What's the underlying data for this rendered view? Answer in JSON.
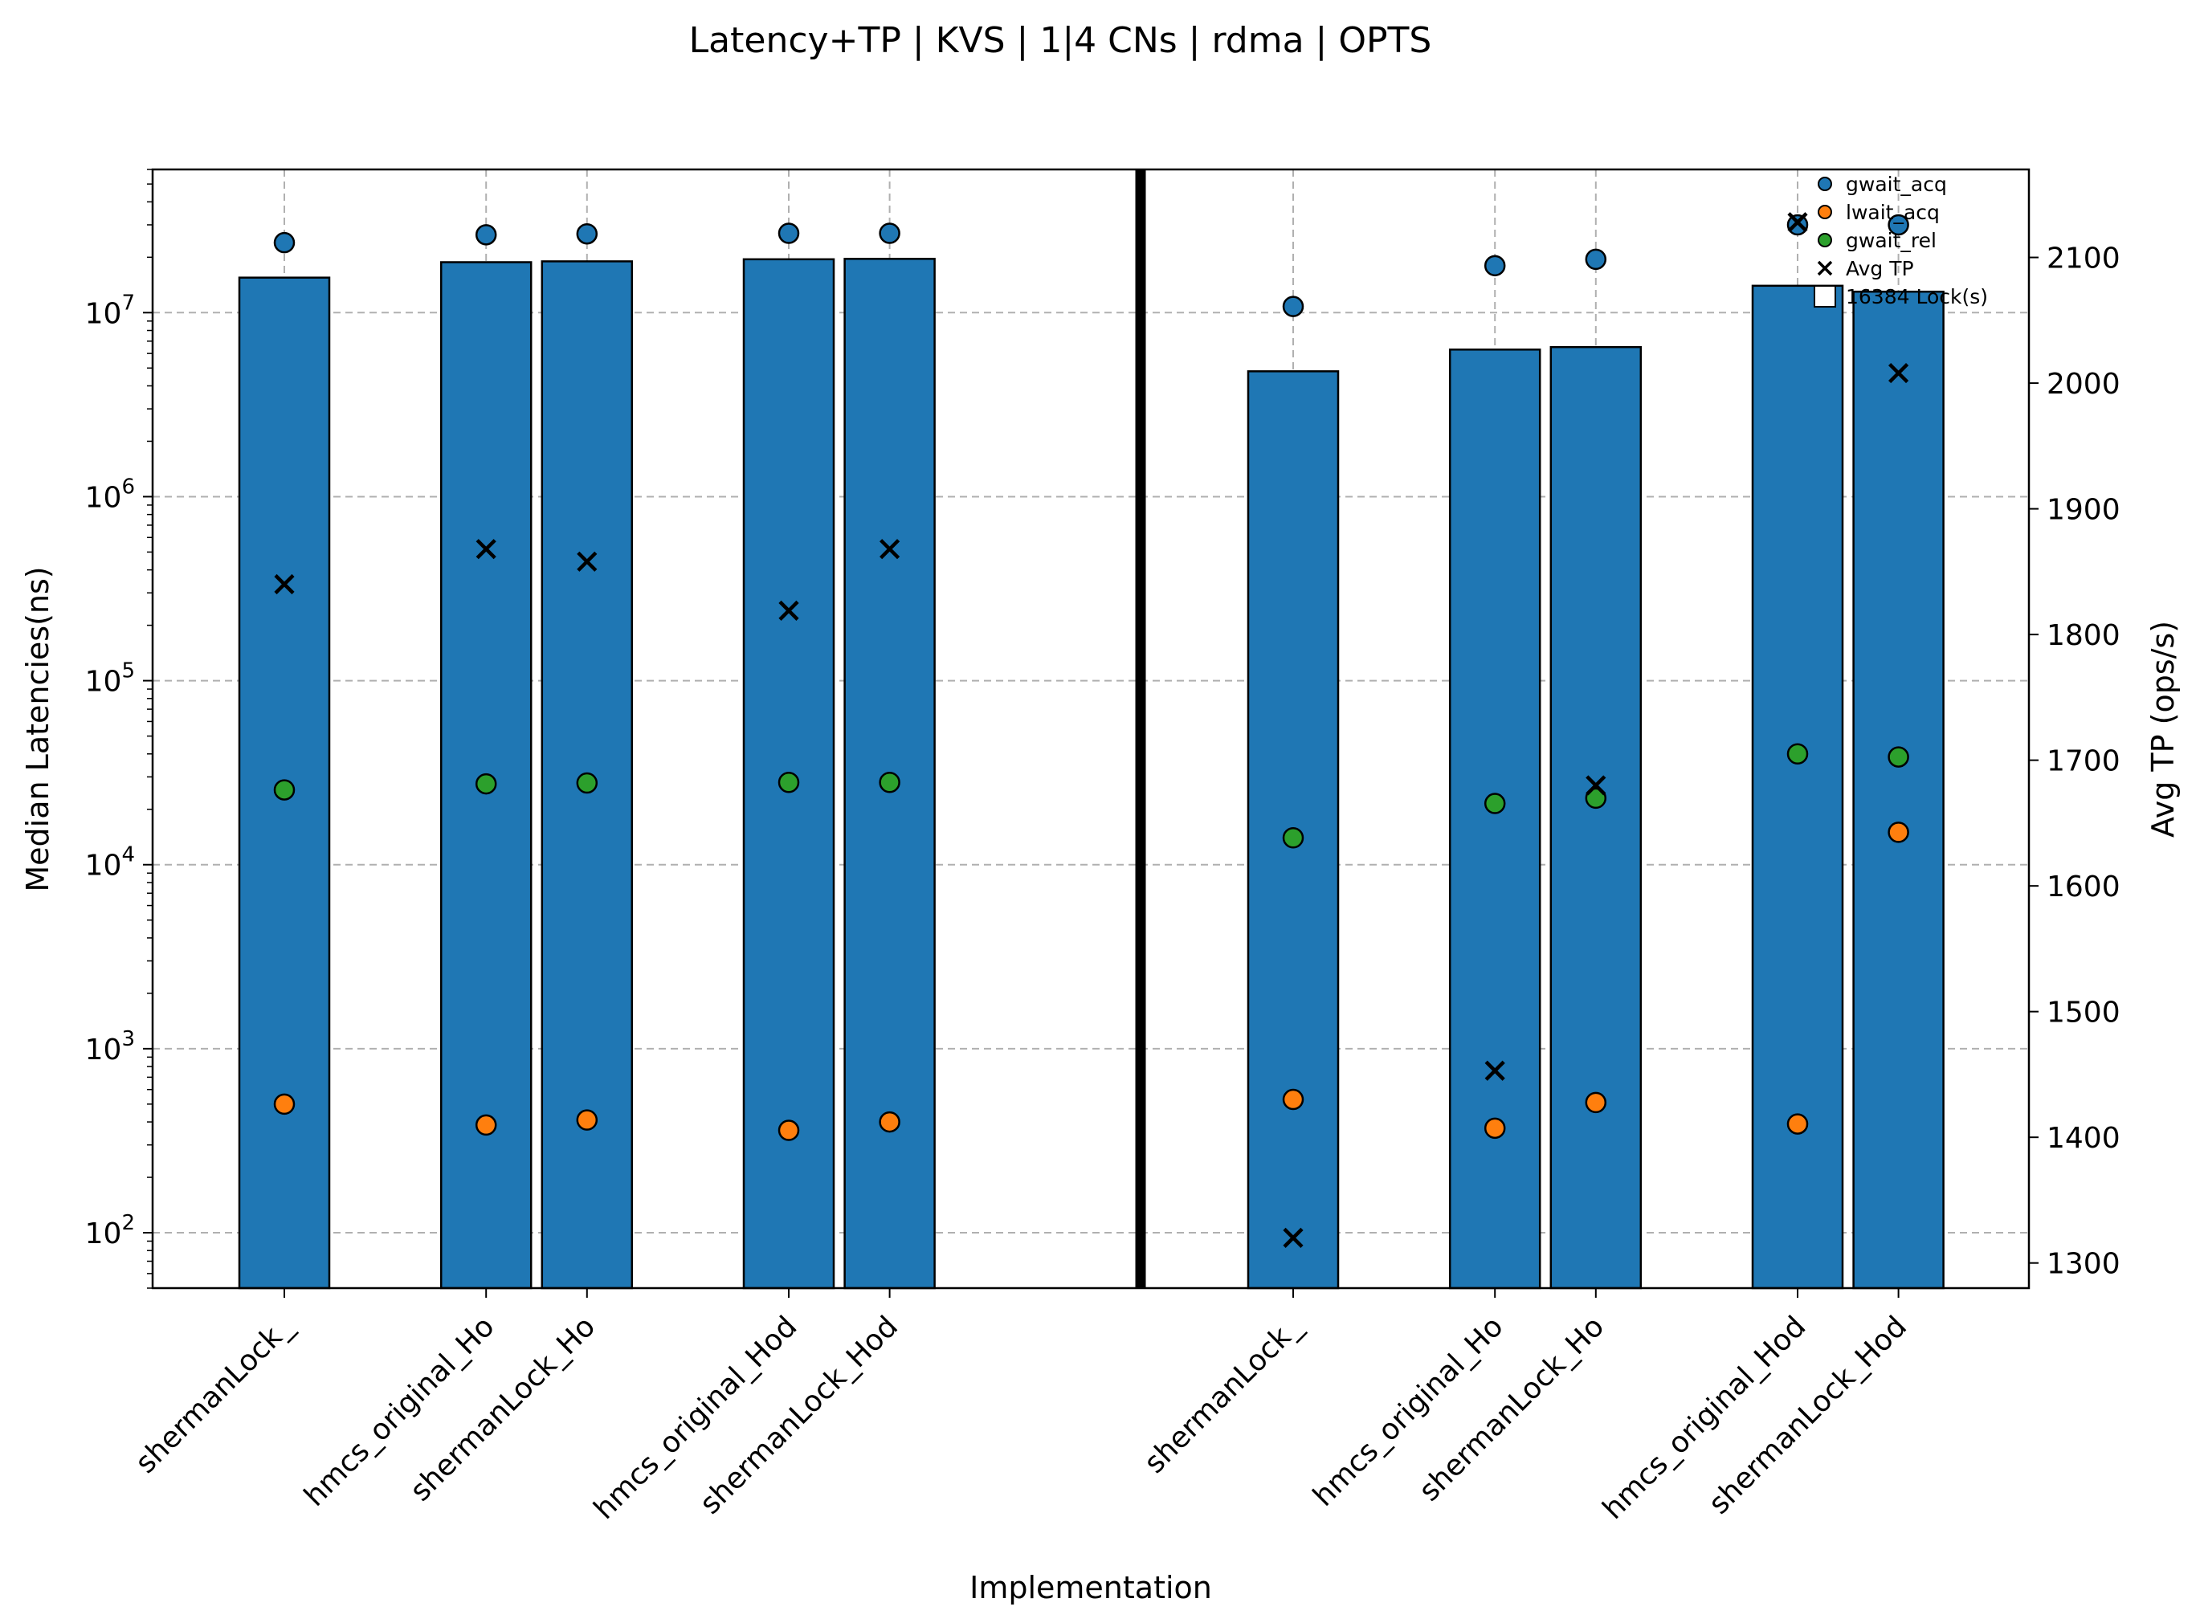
{
  "chart_data": {
    "type": "bar",
    "title": "Latency+TP | KVS | 1|4 CNs | rdma | OPTS",
    "xlabel": "Implementation",
    "ylabel_left": "Median Latencies(ns)",
    "ylabel_right": "Avg TP (ops/s)",
    "y_scale_left": "log",
    "ylim_left": [
      50,
      60000000
    ],
    "ylim_right": [
      1280,
      2170
    ],
    "yticks_right": [
      1300,
      1400,
      1500,
      1600,
      1700,
      1800,
      1900,
      2000,
      2100
    ],
    "yticks_left": [
      {
        "value": 100,
        "base": "10",
        "exp": "2"
      },
      {
        "value": 1000,
        "base": "10",
        "exp": "3"
      },
      {
        "value": 10000,
        "base": "10",
        "exp": "4"
      },
      {
        "value": 100000,
        "base": "10",
        "exp": "5"
      },
      {
        "value": 1000000,
        "base": "10",
        "exp": "6"
      },
      {
        "value": 10000000,
        "base": "10",
        "exp": "7"
      }
    ],
    "grid": true,
    "legend_position": "top-right",
    "colors": {
      "bar": "#1f77b4",
      "gwait_acq": "#1f77b4",
      "lwait_acq": "#ff7f0e",
      "gwait_rel": "#2ca02c",
      "tp": "#000000",
      "divider": "#000000"
    },
    "legend": [
      {
        "label": "gwait_acq",
        "marker": "circle",
        "color": "#1f77b4"
      },
      {
        "label": "lwait_acq",
        "marker": "circle",
        "color": "#ff7f0e"
      },
      {
        "label": "gwait_rel",
        "marker": "circle",
        "color": "#2ca02c"
      },
      {
        "label": "Avg TP",
        "marker": "x",
        "color": "#000000"
      },
      {
        "label": "16384 Lock(s)",
        "marker": "square",
        "color": "#ffffff"
      }
    ],
    "categories": [
      "shermanLock_",
      "hmcs_original_Ho",
      "shermanLock_Ho",
      "hmcs_original_Hod",
      "shermanLock_Hod",
      "shermanLock_",
      "hmcs_original_Ho",
      "shermanLock_Ho",
      "hmcs_original_Hod",
      "shermanLock_Hod"
    ],
    "groups": [
      {
        "slots": [
          0,
          2,
          3,
          5,
          6
        ]
      },
      {
        "slots": [
          10,
          12,
          13,
          15,
          16
        ]
      }
    ],
    "bar_values": [
      15500000,
      18800000,
      19000000,
      19500000,
      19600000,
      4800000,
      6300000,
      6500000,
      14000000,
      13000000
    ],
    "series": [
      {
        "name": "gwait_acq",
        "values": [
          24000000,
          26500000,
          26800000,
          27000000,
          27000000,
          10800000,
          18000000,
          19500000,
          30000000,
          30000000
        ]
      },
      {
        "name": "lwait_acq",
        "values": [
          500,
          385,
          410,
          360,
          400,
          530,
          370,
          510,
          390,
          15000
        ]
      },
      {
        "name": "gwait_rel",
        "values": [
          25500,
          27500,
          27800,
          28000,
          28000,
          14000,
          21500,
          23000,
          40000,
          38500
        ]
      },
      {
        "name": "Avg TP",
        "axis": "right",
        "values": [
          1840,
          1868,
          1858,
          1819,
          1868,
          1320,
          1453,
          1680,
          2128,
          2008
        ]
      }
    ]
  }
}
